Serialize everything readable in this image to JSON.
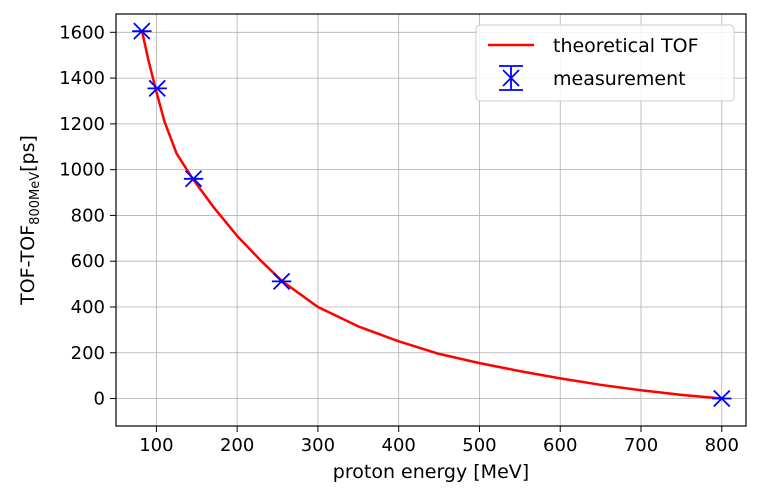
{
  "chart_data": {
    "type": "line",
    "title": "",
    "xlabel": "proton energy [MeV]",
    "ylabel": {
      "main": "TOF-TOF",
      "subscript": "800MeV",
      "unit": "[ps]"
    },
    "xlim": [
      50,
      830
    ],
    "ylim": [
      -120,
      1680
    ],
    "x_ticks": [
      100,
      200,
      300,
      400,
      500,
      600,
      700,
      800
    ],
    "y_ticks": [
      0,
      200,
      400,
      600,
      800,
      1000,
      1200,
      1400,
      1600
    ],
    "grid": true,
    "legend_position": "top-right",
    "series": [
      {
        "name": "theoretical TOF",
        "kind": "line",
        "color": "#ff0000",
        "x": [
          82,
          90,
          100,
          110,
          125,
          145,
          170,
          200,
          230,
          255,
          300,
          350,
          400,
          450,
          500,
          550,
          600,
          650,
          700,
          750,
          800
        ],
        "y": [
          1610,
          1480,
          1340,
          1210,
          1070,
          960,
          840,
          710,
          600,
          515,
          400,
          315,
          250,
          195,
          155,
          120,
          88,
          60,
          36,
          16,
          0
        ]
      },
      {
        "name": "measurement",
        "kind": "errorbar",
        "marker": "x",
        "color": "#0000ff",
        "x": [
          82,
          101,
          146,
          255,
          800
        ],
        "y": [
          1605,
          1355,
          960,
          512,
          0
        ],
        "xerr": [
          12,
          12,
          12,
          12,
          12
        ]
      }
    ]
  }
}
